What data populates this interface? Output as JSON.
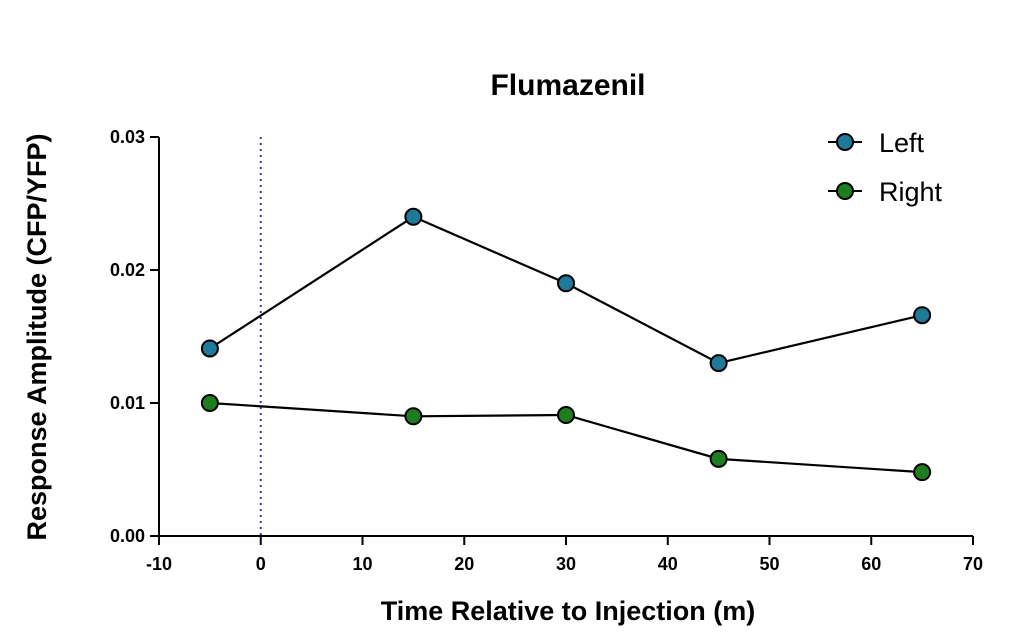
{
  "chart_data": {
    "type": "line",
    "title": "Flumazenil",
    "xlabel": "Time Relative to Injection (m)",
    "ylabel": "Response Amplitude (CFP/YFP)",
    "xlim": [
      -10,
      70
    ],
    "ylim": [
      0,
      0.03
    ],
    "x_ticks": [
      -10,
      0,
      10,
      20,
      30,
      40,
      50,
      60,
      70
    ],
    "x_tick_labels": [
      "-10",
      "0",
      "10",
      "20",
      "30",
      "40",
      "50",
      "60",
      "70"
    ],
    "y_ticks": [
      0,
      0.01,
      0.02,
      0.03
    ],
    "y_tick_labels": [
      "0.00",
      "0.01",
      "0.02",
      "0.03"
    ],
    "vline": {
      "x": 0,
      "style": "dotted",
      "color": "#3b3b8f"
    },
    "grid": false,
    "legend_position": "top-right",
    "x": [
      -5,
      15,
      30,
      45,
      65
    ],
    "series": [
      {
        "name": "Left",
        "values": [
          0.0141,
          0.024,
          0.019,
          0.013,
          0.0166
        ],
        "color": "#1f7a99"
      },
      {
        "name": "Right",
        "values": [
          0.01,
          0.009,
          0.0091,
          0.0058,
          0.0048
        ],
        "color": "#1e7d1e"
      }
    ]
  }
}
